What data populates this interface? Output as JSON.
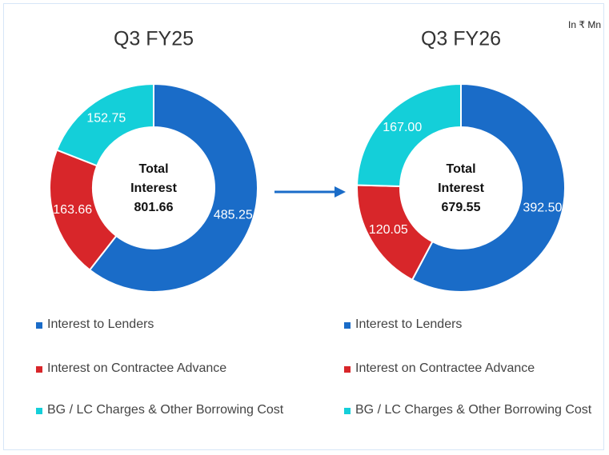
{
  "unit_note": "In ₹ Mn",
  "chart_data": [
    {
      "type": "pie",
      "title": "Q3 FY25",
      "categories": [
        "Interest to Lenders",
        "Interest on Contractee Advance",
        "BG / LC Charges & Other Borrowing Cost"
      ],
      "values": [
        485.25,
        163.66,
        152.75
      ],
      "value_labels": [
        "485.25",
        "163.66",
        "152.75"
      ],
      "colors": [
        "#1a6cc8",
        "#d8262a",
        "#14cfd9"
      ],
      "center_lines": [
        "Total",
        "Interest"
      ],
      "total": 801.66
    },
    {
      "type": "pie",
      "title": "Q3 FY26",
      "categories": [
        "Interest to Lenders",
        "Interest on Contractee Advance",
        "BG / LC Charges & Other Borrowing Cost"
      ],
      "values": [
        392.5,
        120.05,
        167.0
      ],
      "value_labels": [
        "392.50",
        "120.05",
        "167.00"
      ],
      "colors": [
        "#1a6cc8",
        "#d8262a",
        "#14cfd9"
      ],
      "center_lines": [
        "Total",
        "Interest"
      ],
      "total": 679.55
    }
  ]
}
